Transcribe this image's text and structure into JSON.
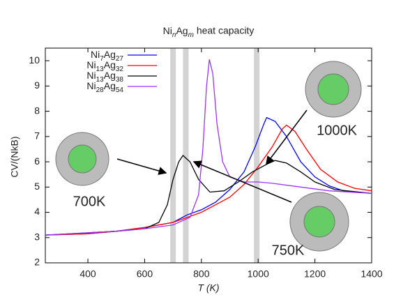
{
  "chart_data": {
    "type": "line",
    "title": "NinAgm heat capacity",
    "x_label": "T (K)",
    "y_label": "CV/(NkB)",
    "xlim": [
      250,
      1400
    ],
    "xticks": [
      400,
      600,
      800,
      1000,
      1200,
      1400
    ],
    "ylim": [
      2,
      10.5
    ],
    "yticks": [
      2,
      3,
      4,
      5,
      6,
      7,
      8,
      9,
      10
    ],
    "bands": [
      700,
      745,
      995
    ],
    "annotations": [
      "1000K",
      "700K",
      "750K"
    ],
    "legend": "upper left",
    "series": [
      {
        "name": "Ni7Ag27",
        "color": "#0000ff",
        "x": [
          250,
          400,
          500,
          600,
          700,
          750,
          800,
          850,
          900,
          950,
          990,
          1020,
          1030,
          1060,
          1100,
          1150,
          1200,
          1250,
          1300,
          1400
        ],
        "values": [
          3.1,
          3.15,
          3.25,
          3.4,
          3.6,
          3.9,
          4.1,
          4.4,
          4.9,
          5.6,
          6.6,
          7.5,
          7.75,
          7.6,
          7.0,
          6.0,
          5.4,
          5.05,
          4.85,
          4.75
        ]
      },
      {
        "name": "Ni13Ag32",
        "color": "#ff0000",
        "x": [
          250,
          400,
          500,
          600,
          700,
          750,
          800,
          850,
          900,
          950,
          1000,
          1050,
          1085,
          1100,
          1130,
          1170,
          1220,
          1280,
          1340,
          1400
        ],
        "values": [
          3.1,
          3.15,
          3.25,
          3.4,
          3.6,
          3.8,
          4.0,
          4.3,
          4.6,
          5.1,
          5.8,
          6.6,
          7.3,
          7.45,
          7.2,
          6.5,
          5.7,
          5.2,
          4.95,
          4.85
        ]
      },
      {
        "name": "Ni13Ag38",
        "color": "#000000",
        "x": [
          250,
          500,
          600,
          650,
          680,
          700,
          720,
          735,
          760,
          790,
          830,
          880,
          930,
          980,
          1030,
          1060,
          1100,
          1150,
          1200,
          1270,
          1400
        ],
        "values": [
          3.1,
          3.25,
          3.35,
          3.6,
          4.3,
          5.3,
          6.0,
          6.25,
          6.0,
          5.3,
          4.8,
          4.85,
          5.2,
          5.6,
          5.9,
          6.05,
          5.95,
          5.6,
          5.2,
          4.9,
          4.75
        ]
      },
      {
        "name": "Ni28Ag54",
        "color": "#9933ff",
        "x": [
          250,
          500,
          600,
          700,
          760,
          790,
          805,
          818,
          828,
          840,
          855,
          875,
          900,
          950,
          1000,
          1050,
          1150,
          1250,
          1400
        ],
        "values": [
          3.1,
          3.25,
          3.35,
          3.5,
          3.8,
          4.7,
          6.5,
          9.0,
          10.05,
          9.5,
          7.5,
          6.0,
          5.4,
          5.2,
          5.2,
          5.15,
          5.0,
          4.85,
          4.75
        ]
      }
    ]
  }
}
